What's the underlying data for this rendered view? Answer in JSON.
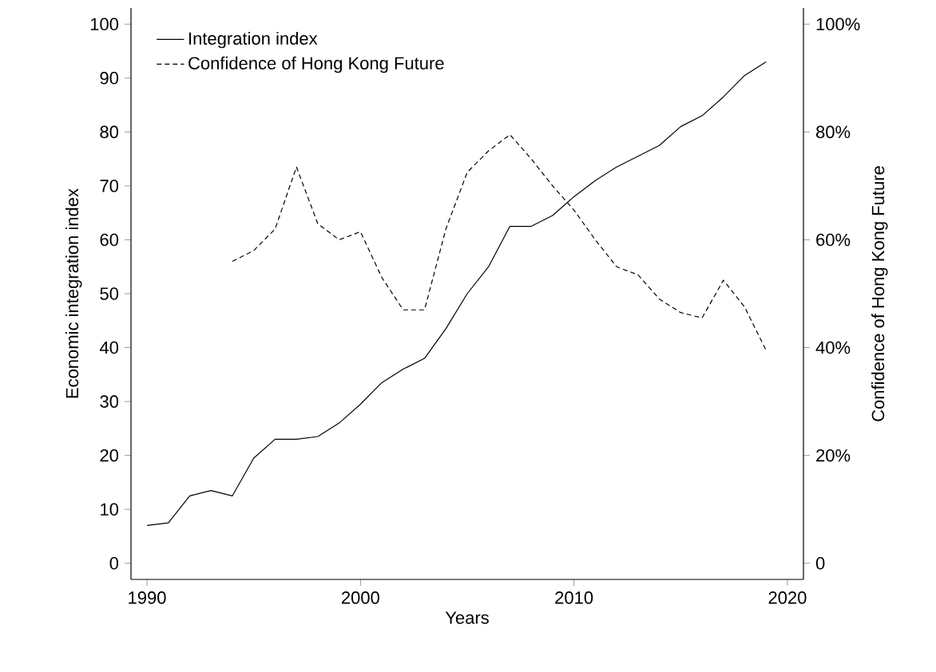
{
  "chart_data": {
    "type": "line",
    "xlabel": "Years",
    "ylabel": "Economic integration index",
    "y2label": "Confidence of Hong Kong Future",
    "xlim": [
      1989.25,
      2020.75
    ],
    "xticks": [
      1990,
      2000,
      2010,
      2020
    ],
    "ylim": [
      -3,
      103
    ],
    "yticks": [
      0,
      10,
      20,
      30,
      40,
      50,
      60,
      70,
      80,
      90,
      100
    ],
    "y2lim": [
      -3,
      103
    ],
    "y2ticks": [
      0,
      {
        "value": 20,
        "label": "20%"
      },
      {
        "value": 40,
        "label": "40%"
      },
      {
        "value": 60,
        "label": "60%"
      },
      {
        "value": 80,
        "label": "80%"
      },
      {
        "value": 100,
        "label": "100%"
      }
    ],
    "legend": "top left",
    "grid": false,
    "series": [
      {
        "name": "Integration index",
        "color": "#000000",
        "line_style": "solid",
        "x": [
          1990,
          1991,
          1992,
          1993,
          1994,
          1995,
          1996,
          1997,
          1998,
          1999,
          2000,
          2001,
          2002,
          2003,
          2004,
          2005,
          2006,
          2007,
          2008,
          2009,
          2010,
          2011,
          2012,
          2013,
          2014,
          2015,
          2016,
          2017,
          2018,
          2019
        ],
        "values": [
          7,
          7.5,
          12.5,
          13.5,
          12.5,
          19.5,
          23,
          23,
          23.5,
          26,
          29.5,
          33.5,
          36,
          38,
          43.5,
          50,
          55,
          62.5,
          62.5,
          64.5,
          68,
          71,
          73.5,
          75.5,
          77.5,
          81,
          83,
          86.5,
          90.5,
          93
        ]
      },
      {
        "name": "Confidence of Hong Kong Future",
        "color": "#000000",
        "line_style": "dashed",
        "axis": "y2",
        "x": [
          1994,
          1995,
          1996,
          1997,
          1998,
          1999,
          2000,
          2001,
          2002,
          2003,
          2004,
          2005,
          2006,
          2007,
          2008,
          2009,
          2010,
          2011,
          2012,
          2013,
          2014,
          2015,
          2016,
          2017,
          2018,
          2019
        ],
        "values": [
          56,
          58,
          62,
          73.5,
          63,
          60,
          61.5,
          53,
          47,
          47,
          62,
          72.5,
          76.5,
          79.5,
          75,
          70,
          65.5,
          60,
          55,
          53.5,
          49,
          46.5,
          45.5,
          52.5,
          47.5,
          39.5
        ]
      }
    ]
  }
}
